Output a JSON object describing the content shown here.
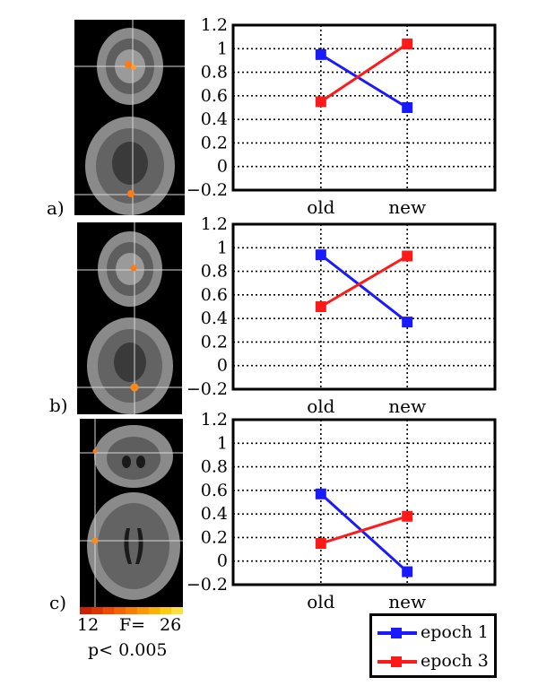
{
  "colors": {
    "epoch1": "#1a1aff",
    "epoch3": "#ff1a1a",
    "activation": "#ff7a10",
    "crosshair": "#d8d8d8"
  },
  "panels": [
    {
      "label": "a)"
    },
    {
      "label": "b)"
    },
    {
      "label": "c)"
    }
  ],
  "colorbar": {
    "min": "12",
    "mid": "F=",
    "max": "26",
    "pvalue": "p< 0.005",
    "colors": [
      "#cc2200",
      "#dd3300",
      "#ee4a00",
      "#f56400",
      "#f87e00",
      "#fa9800",
      "#fcb200",
      "#fdcc10",
      "#fee040"
    ]
  },
  "legend": {
    "items": [
      {
        "label": "epoch 1",
        "series": "epoch1"
      },
      {
        "label": "epoch 3",
        "series": "epoch3"
      }
    ]
  },
  "chart_data": [
    {
      "type": "line",
      "categories": [
        "old",
        "new"
      ],
      "ylim": [
        -0.2,
        1.2
      ],
      "yticks": [
        "−0.2",
        "0",
        "0.2",
        "0.4",
        "0.6",
        "0.8",
        "1",
        "1.2"
      ],
      "grid": true,
      "series": [
        {
          "name": "epoch 1",
          "values": [
            0.95,
            0.5
          ]
        },
        {
          "name": "epoch 3",
          "values": [
            0.55,
            1.04
          ]
        }
      ]
    },
    {
      "type": "line",
      "categories": [
        "old",
        "new"
      ],
      "ylim": [
        -0.2,
        1.2
      ],
      "yticks": [
        "−0.2",
        "0",
        "0.2",
        "0.4",
        "0.6",
        "0.8",
        "1",
        "1.2"
      ],
      "grid": true,
      "series": [
        {
          "name": "epoch 1",
          "values": [
            0.94,
            0.37
          ]
        },
        {
          "name": "epoch 3",
          "values": [
            0.5,
            0.93
          ]
        }
      ]
    },
    {
      "type": "line",
      "categories": [
        "old",
        "new"
      ],
      "ylim": [
        -0.2,
        1.2
      ],
      "yticks": [
        "−0.2",
        "0",
        "0.2",
        "0.4",
        "0.6",
        "0.8",
        "1",
        "1.2"
      ],
      "grid": true,
      "series": [
        {
          "name": "epoch 1",
          "values": [
            0.57,
            -0.09
          ]
        },
        {
          "name": "epoch 3",
          "values": [
            0.15,
            0.38
          ]
        }
      ]
    }
  ]
}
